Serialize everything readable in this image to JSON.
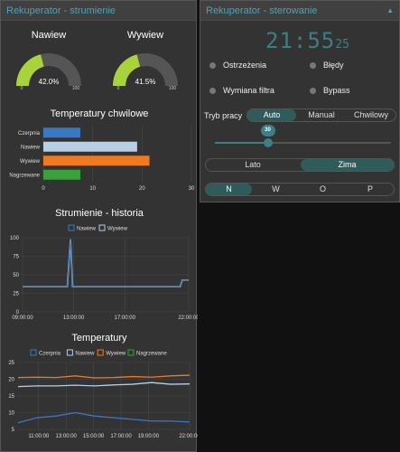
{
  "left_panel": {
    "title": "Rekuperator - strumienie",
    "gauges": [
      {
        "label": "Nawiew",
        "value_text": "42.0%",
        "value": 0.42,
        "min": "0",
        "max": "100",
        "color": "#a9d33b"
      },
      {
        "label": "Wywiew",
        "value_text": "41.5%",
        "value": 0.415,
        "min": "0",
        "max": "100",
        "color": "#a9d33b"
      }
    ]
  },
  "right_panel": {
    "title": "Rekuperator - sterowanie",
    "clock": "21:55",
    "clock_seconds": "25",
    "indicators": [
      {
        "label": "Ostrzeżenia"
      },
      {
        "label": "Błędy"
      },
      {
        "label": "Wymiana filtra"
      },
      {
        "label": "Bypass"
      }
    ],
    "mode_label": "Tryb pracy",
    "modes": [
      "Auto",
      "Manual",
      "Chwilowy"
    ],
    "active_mode": 0,
    "slider_value": "30",
    "slider_level": 0.3,
    "seasons": [
      "Lato",
      "Zima"
    ],
    "active_season": 1,
    "directions": [
      "N",
      "W",
      "O",
      "P"
    ],
    "active_direction": 0
  },
  "chart_data": [
    {
      "type": "bar",
      "title": "Temperatury chwilowe",
      "categories": [
        "Czerpnia",
        "Nawiew",
        "Wywiew",
        "Nagrzewane"
      ],
      "values": [
        7.5,
        19,
        21.5,
        7.5
      ],
      "colors": [
        "#3a78c2",
        "#b8cfe8",
        "#f07a24",
        "#3aa03a"
      ],
      "xlim": [
        0,
        30
      ],
      "xticks": [
        "0",
        "10",
        "20",
        "30"
      ],
      "orientation": "horizontal"
    },
    {
      "type": "line",
      "title": "Strumienie - historia",
      "series": [
        {
          "name": "Nawiew",
          "color": "#3a78c2"
        },
        {
          "name": "Wywiew",
          "color": "#b8cfe8"
        }
      ],
      "ylim": [
        0,
        100
      ],
      "yticks": [
        "0",
        "25",
        "50",
        "75",
        "100"
      ],
      "xticks": [
        "09:00:00",
        "13:00:00",
        "17:00:00",
        "22:00:00"
      ],
      "points": [
        [
          "09:00",
          34
        ],
        [
          "12:30",
          34
        ],
        [
          "12:45",
          98
        ],
        [
          "12:55",
          34
        ],
        [
          "21:20",
          34
        ],
        [
          "21:30",
          43
        ],
        [
          "22:00",
          43
        ]
      ]
    },
    {
      "type": "line",
      "title": "Temperatury",
      "series": [
        {
          "name": "Czerpnia",
          "color": "#3a78c2",
          "values": [
            7,
            8.5,
            9,
            10,
            9,
            8.5,
            8,
            7.5,
            7.5,
            7.2
          ]
        },
        {
          "name": "Nawiew",
          "color": "#b8cfe8",
          "values": [
            17.8,
            18,
            18,
            18.2,
            18,
            18.3,
            18.5,
            19,
            18.5,
            18.6
          ]
        },
        {
          "name": "Wywiew",
          "color": "#f07a24",
          "values": [
            20.5,
            20.6,
            20.5,
            21,
            20.4,
            20.5,
            20.8,
            20.6,
            21,
            21.2
          ]
        },
        {
          "name": "Nagrzewane",
          "color": "#3aa03a",
          "values": []
        }
      ],
      "ylim": [
        5,
        25
      ],
      "yticks": [
        "5",
        "10",
        "15",
        "20",
        "25"
      ],
      "xticks": [
        "11:00:00",
        "13:00:00",
        "15:00:00",
        "17:00:00",
        "19:00:00",
        "22:00:00"
      ]
    }
  ]
}
